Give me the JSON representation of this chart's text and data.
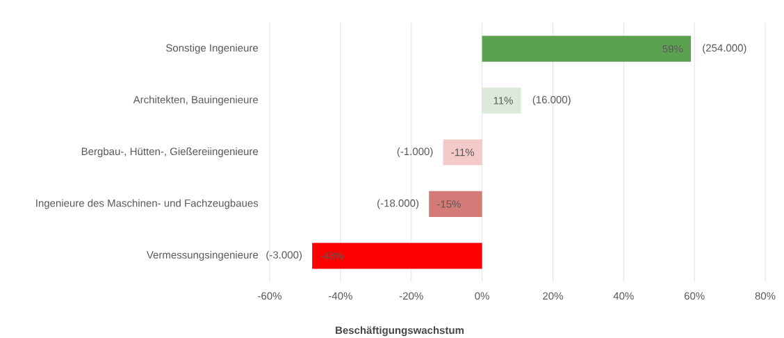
{
  "chart_data": {
    "type": "bar",
    "orientation": "horizontal",
    "xlabel": "Beschäftigungswachstum",
    "categories": [
      "Sonstige Ingenieure",
      "Architekten, Bauingenieure",
      "Bergbau-, Hütten-, Gießereiingenieure",
      "Ingenieure des Maschinen- und Fachzeugbaues",
      "Vermessungsingenieure"
    ],
    "values": [
      59,
      11,
      -11,
      -15,
      -48
    ],
    "colors": [
      "#5ba150",
      "#dcebd9",
      "#f4c9c9",
      "#d47a77",
      "#ff0000"
    ],
    "value_labels": [
      "59%",
      "11%",
      "-11%",
      "-15%",
      "-48%"
    ],
    "annotations": [
      {
        "text": "(254.000)",
        "x": 59,
        "y": "Sonstige Ingenieure"
      },
      {
        "text": "(16.000)",
        "x": 11,
        "y": "Architekten, Bauingenieure"
      },
      {
        "text": "(-1.000)",
        "x": -11,
        "y": "Bergbau-, Hütten-, Gießereiingenieure"
      },
      {
        "text": "(-18.000)",
        "x": -15,
        "y": "Ingenieure des Maschinen- und Fachzeugbaues"
      },
      {
        "text": "(-3.000)",
        "x": -48,
        "y": "Vermessungsingenieure"
      }
    ],
    "xlim": [
      -60,
      80
    ],
    "xticks": [
      {
        "value": -60,
        "label": "-60%"
      },
      {
        "value": -40,
        "label": "-40%"
      },
      {
        "value": -20,
        "label": "-20%"
      },
      {
        "value": 0,
        "label": "0%"
      },
      {
        "value": 20,
        "label": "20%"
      },
      {
        "value": 40,
        "label": "40%"
      },
      {
        "value": 60,
        "label": "60%"
      },
      {
        "value": 80,
        "label": "80%"
      }
    ],
    "grid": "x"
  }
}
